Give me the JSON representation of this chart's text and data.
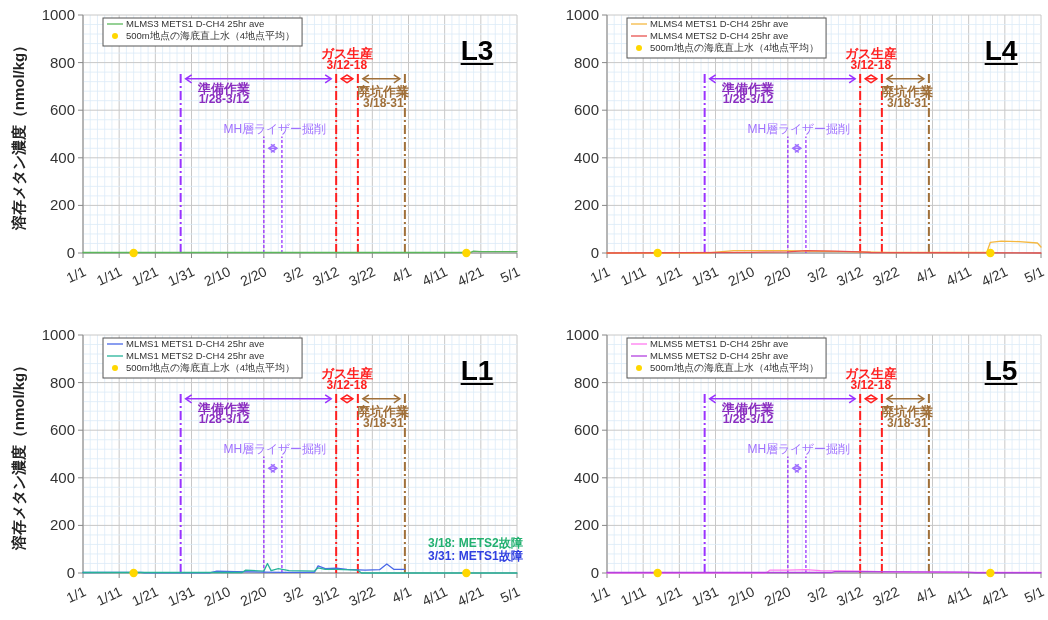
{
  "chart_data": [
    {
      "type": "line",
      "title": "L3",
      "ylabel": "溶存メタン濃度（nmol/kg）",
      "xlim": [
        "--01-01",
        "--05-01"
      ],
      "ylim": [
        0,
        1000
      ],
      "xticks": [
        {
          "value": "--01-01",
          "label": "1/1"
        },
        {
          "value": "--01-11",
          "label": "1/11"
        },
        {
          "value": "--01-21",
          "label": "1/21"
        },
        {
          "value": "--01-31",
          "label": "1/31"
        },
        {
          "value": "--02-10",
          "label": "2/10"
        },
        {
          "value": "--02-20",
          "label": "2/20"
        },
        {
          "value": "--03-02",
          "label": "3/2"
        },
        {
          "value": "--03-12",
          "label": "3/12"
        },
        {
          "value": "--03-22",
          "label": "3/22"
        },
        {
          "value": "--04-01",
          "label": "4/1"
        },
        {
          "value": "--04-11",
          "label": "4/11"
        },
        {
          "value": "--04-21",
          "label": "4/21"
        },
        {
          "value": "--05-01",
          "label": "5/1"
        }
      ],
      "yticks": [
        0,
        200,
        400,
        600,
        800,
        1000
      ],
      "grid": true,
      "legend": "top left",
      "series": [
        {
          "name": "MLMS3 METS1 D-CH4 25hr ave",
          "color": "#5cb85c",
          "x": [
            "--01-01",
            "--02-01",
            "--03-01",
            "--04-01",
            "--04-18",
            "--04-19",
            "--04-21",
            "--05-01"
          ],
          "values": [
            2,
            2,
            2,
            2,
            2,
            8,
            6,
            6
          ]
        },
        {
          "name": "500m地点の海底直上水（4地点平均）",
          "type": "scatter",
          "marker": "circle",
          "color": "#ffd700",
          "x": [
            "--01-15",
            "--04-17"
          ],
          "values": [
            0,
            0
          ]
        }
      ],
      "ref_lines": [
        {
          "axis": "x",
          "value": "--01-28",
          "color": "#9933ff",
          "line_style": "dashed"
        },
        {
          "axis": "x",
          "value": "--02-20",
          "color": "#9933ff",
          "line_style": "dotted"
        },
        {
          "axis": "x",
          "value": "--02-25",
          "color": "#9933ff",
          "line_style": "dotted"
        },
        {
          "axis": "x",
          "value": "--03-12",
          "color": "#ff2020",
          "line_style": "dashed"
        },
        {
          "axis": "x",
          "value": "--03-18",
          "color": "#ff2020",
          "line_style": "dashed"
        },
        {
          "axis": "x",
          "value": "--03-31",
          "color": "#a0703a",
          "line_style": "dashed"
        }
      ],
      "annotations": [
        "ガス生産",
        "3/12-18",
        "準備作業",
        "1/28-3/12",
        "廃坑作業",
        "3/18-31",
        "MH層ライザー掘削"
      ]
    },
    {
      "type": "line",
      "title": "L4",
      "xlim": [
        "--01-01",
        "--05-01"
      ],
      "ylim": [
        0,
        1000
      ],
      "xticks": [
        {
          "value": "--01-01",
          "label": "1/1"
        },
        {
          "value": "--01-11",
          "label": "1/11"
        },
        {
          "value": "--01-21",
          "label": "1/21"
        },
        {
          "value": "--01-31",
          "label": "1/31"
        },
        {
          "value": "--02-10",
          "label": "2/10"
        },
        {
          "value": "--02-20",
          "label": "2/20"
        },
        {
          "value": "--03-02",
          "label": "3/2"
        },
        {
          "value": "--03-12",
          "label": "3/12"
        },
        {
          "value": "--03-22",
          "label": "3/22"
        },
        {
          "value": "--04-01",
          "label": "4/1"
        },
        {
          "value": "--04-11",
          "label": "4/11"
        },
        {
          "value": "--04-21",
          "label": "4/21"
        },
        {
          "value": "--05-01",
          "label": "5/1"
        }
      ],
      "yticks": [
        0,
        200,
        400,
        600,
        800,
        1000
      ],
      "grid": true,
      "legend": "top left",
      "series": [
        {
          "name": "MLMS4 METS1 D-CH4 25hr ave",
          "color": "#f5b841",
          "x": [
            "--01-01",
            "--01-29",
            "--02-01",
            "--02-05",
            "--02-20",
            "--02-25",
            "--03-12",
            "--03-20",
            "--04-16",
            "--04-17",
            "--04-20",
            "--04-25",
            "--04-30",
            "--05-01"
          ],
          "values": [
            0,
            0,
            5,
            10,
            10,
            8,
            5,
            2,
            2,
            45,
            50,
            48,
            42,
            25
          ]
        },
        {
          "name": "MLMS4 METS2 D-CH4 25hr ave",
          "color": "#e8524f",
          "x": [
            "--01-01",
            "--02-10",
            "--02-20",
            "--02-25",
            "--03-05",
            "--03-12",
            "--03-15",
            "--05-01"
          ],
          "values": [
            0,
            3,
            5,
            10,
            8,
            5,
            2,
            0
          ]
        },
        {
          "name": "500m地点の海底直上水（4地点平均）",
          "type": "scatter",
          "marker": "circle",
          "color": "#ffd700",
          "x": [
            "--01-15",
            "--04-17"
          ],
          "values": [
            0,
            0
          ]
        }
      ],
      "ref_lines": [
        {
          "axis": "x",
          "value": "--01-28",
          "color": "#9933ff",
          "line_style": "dashed"
        },
        {
          "axis": "x",
          "value": "--02-20",
          "color": "#9933ff",
          "line_style": "dotted"
        },
        {
          "axis": "x",
          "value": "--02-25",
          "color": "#9933ff",
          "line_style": "dotted"
        },
        {
          "axis": "x",
          "value": "--03-12",
          "color": "#ff2020",
          "line_style": "dashed"
        },
        {
          "axis": "x",
          "value": "--03-18",
          "color": "#ff2020",
          "line_style": "dashed"
        },
        {
          "axis": "x",
          "value": "--03-31",
          "color": "#a0703a",
          "line_style": "dashed"
        }
      ],
      "annotations": [
        "ガス生産",
        "3/12-18",
        "準備作業",
        "1/28-3/12",
        "廃坑作業",
        "3/18-31",
        "MH層ライザー掘削"
      ]
    },
    {
      "type": "line",
      "title": "L1",
      "ylabel": "溶存メタン濃度（nmol/kg）",
      "xlim": [
        "--01-01",
        "--05-01"
      ],
      "ylim": [
        0,
        1000
      ],
      "xticks": [
        {
          "value": "--01-01",
          "label": "1/1"
        },
        {
          "value": "--01-11",
          "label": "1/11"
        },
        {
          "value": "--01-21",
          "label": "1/21"
        },
        {
          "value": "--01-31",
          "label": "1/31"
        },
        {
          "value": "--02-10",
          "label": "2/10"
        },
        {
          "value": "--02-20",
          "label": "2/20"
        },
        {
          "value": "--03-02",
          "label": "3/2"
        },
        {
          "value": "--03-12",
          "label": "3/12"
        },
        {
          "value": "--03-22",
          "label": "3/22"
        },
        {
          "value": "--04-01",
          "label": "4/1"
        },
        {
          "value": "--04-11",
          "label": "4/11"
        },
        {
          "value": "--04-21",
          "label": "4/21"
        },
        {
          "value": "--05-01",
          "label": "5/1"
        }
      ],
      "yticks": [
        0,
        200,
        400,
        600,
        800,
        1000
      ],
      "grid": true,
      "legend": "top left",
      "series": [
        {
          "name": "MLMS1 METS1 D-CH4 25hr ave",
          "color": "#4a68e8",
          "x": [
            "--01-01",
            "--01-11",
            "--01-17",
            "--01-18",
            "--02-05",
            "--02-07",
            "--02-12",
            "--02-20",
            "--02-25",
            "--03-06",
            "--03-07",
            "--03-09",
            "--03-12",
            "--03-15",
            "--03-20",
            "--03-24",
            "--03-26",
            "--03-28",
            "--03-31"
          ],
          "values": [
            2,
            3,
            3,
            1,
            1,
            8,
            6,
            4,
            3,
            3,
            30,
            18,
            20,
            15,
            12,
            14,
            38,
            15,
            15
          ]
        },
        {
          "name": "MLMS1 METS2 D-CH4 25hr ave",
          "color": "#26b39a",
          "x": [
            "--01-01",
            "--02-14",
            "--02-15",
            "--02-20",
            "--02-21",
            "--02-22",
            "--02-24",
            "--02-27",
            "--03-06",
            "--03-07",
            "--03-09",
            "--03-12",
            "--03-18",
            "--03-19",
            "--05-01"
          ],
          "values": [
            2,
            2,
            12,
            8,
            40,
            10,
            18,
            10,
            8,
            22,
            15,
            15,
            12,
            0,
            0
          ]
        },
        {
          "name": "500m地点の海底直上水（4地点平均）",
          "type": "scatter",
          "marker": "circle",
          "color": "#ffd700",
          "x": [
            "--01-15",
            "--04-17"
          ],
          "values": [
            0,
            0
          ]
        }
      ],
      "ref_lines": [
        {
          "axis": "x",
          "value": "--01-28",
          "color": "#9933ff",
          "line_style": "dashed"
        },
        {
          "axis": "x",
          "value": "--02-20",
          "color": "#9933ff",
          "line_style": "dotted"
        },
        {
          "axis": "x",
          "value": "--02-25",
          "color": "#9933ff",
          "line_style": "dotted"
        },
        {
          "axis": "x",
          "value": "--03-12",
          "color": "#ff2020",
          "line_style": "dashed"
        },
        {
          "axis": "x",
          "value": "--03-18",
          "color": "#ff2020",
          "line_style": "dashed"
        },
        {
          "axis": "x",
          "value": "--03-31",
          "color": "#a0703a",
          "line_style": "dashed"
        }
      ],
      "annotations": [
        "ガス生産",
        "3/12-18",
        "準備作業",
        "1/28-3/12",
        "廃坑作業",
        "3/18-31",
        "MH層ライザー掘削",
        "3/18: METS2故障",
        "3/31: METS1故障"
      ]
    },
    {
      "type": "line",
      "title": "L5",
      "xlim": [
        "--01-01",
        "--05-01"
      ],
      "ylim": [
        0,
        1000
      ],
      "xticks": [
        {
          "value": "--01-01",
          "label": "1/1"
        },
        {
          "value": "--01-11",
          "label": "1/11"
        },
        {
          "value": "--01-21",
          "label": "1/21"
        },
        {
          "value": "--01-31",
          "label": "1/31"
        },
        {
          "value": "--02-10",
          "label": "2/10"
        },
        {
          "value": "--02-20",
          "label": "2/20"
        },
        {
          "value": "--03-02",
          "label": "3/2"
        },
        {
          "value": "--03-12",
          "label": "3/12"
        },
        {
          "value": "--03-22",
          "label": "3/22"
        },
        {
          "value": "--04-01",
          "label": "4/1"
        },
        {
          "value": "--04-11",
          "label": "4/11"
        },
        {
          "value": "--04-21",
          "label": "4/21"
        },
        {
          "value": "--05-01",
          "label": "5/1"
        }
      ],
      "yticks": [
        0,
        200,
        400,
        600,
        800,
        1000
      ],
      "grid": true,
      "legend": "top left",
      "series": [
        {
          "name": "MLMS5 METS1 D-CH4 25hr ave",
          "color": "#ff7bf0",
          "x": [
            "--01-01",
            "--02-14",
            "--02-15",
            "--02-20",
            "--02-25",
            "--03-01",
            "--03-12",
            "--03-20",
            "--04-10",
            "--05-01"
          ],
          "values": [
            0,
            0,
            12,
            12,
            14,
            10,
            8,
            5,
            3,
            2
          ]
        },
        {
          "name": "MLMS5 METS2 D-CH4 25hr ave",
          "color": "#b442e0",
          "x": [
            "--01-01",
            "--03-04",
            "--03-05",
            "--03-12",
            "--04-10",
            "--04-13",
            "--05-01"
          ],
          "values": [
            2,
            2,
            6,
            6,
            4,
            1,
            1
          ]
        },
        {
          "name": "500m地点の海底直上水（4地点平均）",
          "type": "scatter",
          "marker": "circle",
          "color": "#ffd700",
          "x": [
            "--01-15",
            "--04-17"
          ],
          "values": [
            0,
            0
          ]
        }
      ],
      "ref_lines": [
        {
          "axis": "x",
          "value": "--01-28",
          "color": "#9933ff",
          "line_style": "dashed"
        },
        {
          "axis": "x",
          "value": "--02-20",
          "color": "#9933ff",
          "line_style": "dotted"
        },
        {
          "axis": "x",
          "value": "--02-25",
          "color": "#9933ff",
          "line_style": "dotted"
        },
        {
          "axis": "x",
          "value": "--03-12",
          "color": "#ff2020",
          "line_style": "dashed"
        },
        {
          "axis": "x",
          "value": "--03-18",
          "color": "#ff2020",
          "line_style": "dashed"
        },
        {
          "axis": "x",
          "value": "--03-31",
          "color": "#a0703a",
          "line_style": "dashed"
        }
      ],
      "annotations": [
        "ガス生産",
        "3/12-18",
        "準備作業",
        "1/28-3/12",
        "廃坑作業",
        "3/18-31",
        "MH層ライザー掘削"
      ]
    }
  ]
}
